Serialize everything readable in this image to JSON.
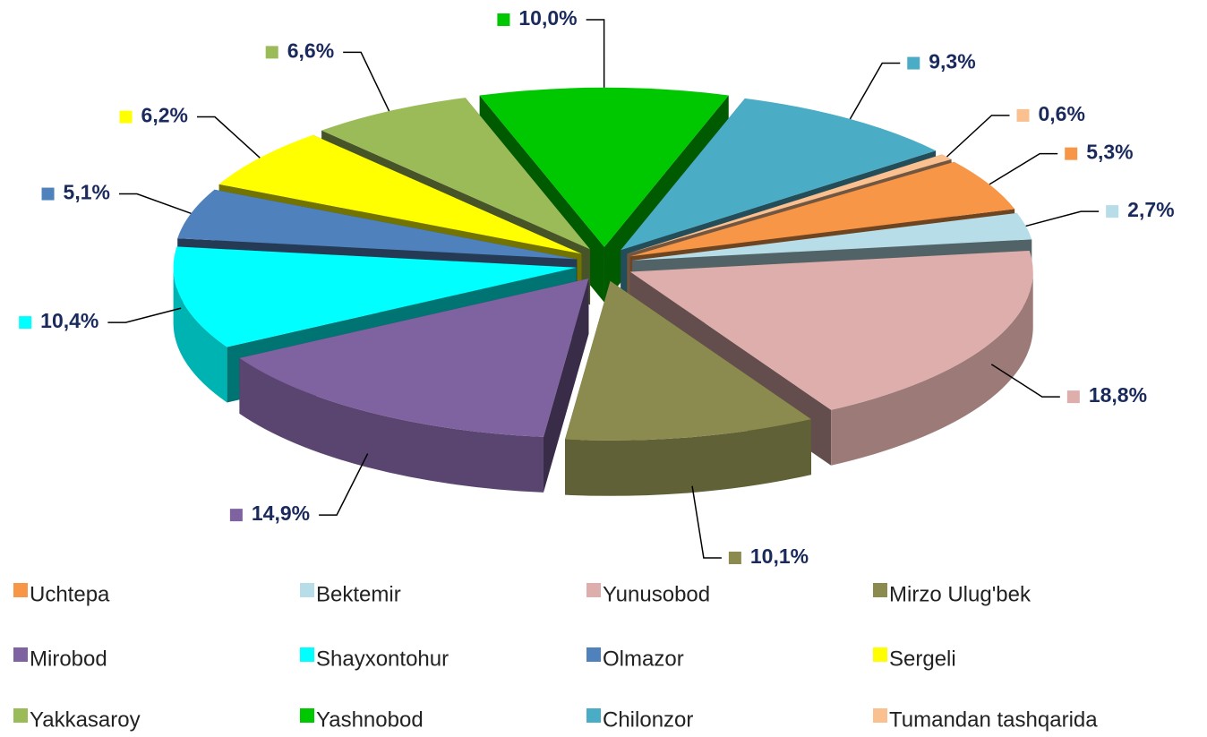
{
  "chart_data": {
    "type": "pie3d",
    "categories": [
      "Uchtepa",
      "Bektemir",
      "Yunusobod",
      "Mirzo Ulug'bek",
      "Mirobod",
      "Shayxontohur",
      "Olmazor",
      "Sergeli",
      "Yakkasaroy",
      "Yashnobod",
      "Chilonzor",
      "Tumandan tashqarida"
    ],
    "values": [
      5.3,
      2.7,
      18.8,
      10.1,
      14.9,
      10.4,
      5.1,
      6.2,
      6.6,
      10.0,
      9.3,
      0.6
    ],
    "value_labels": [
      "5,3%",
      "2,7%",
      "18,8%",
      "10,1%",
      "14,9%",
      "10,4%",
      "5,1%",
      "6,2%",
      "6,6%",
      "10,0%",
      "9,3%",
      "0,6%"
    ],
    "colors": [
      "#f79646",
      "#b7dde8",
      "#ddaeac",
      "#8b8a4f",
      "#7f62a0",
      "#00ffff",
      "#4f81bd",
      "#ffff00",
      "#9bbb59",
      "#00c800",
      "#4bacc6",
      "#fac090"
    ],
    "legend": "bottom"
  }
}
